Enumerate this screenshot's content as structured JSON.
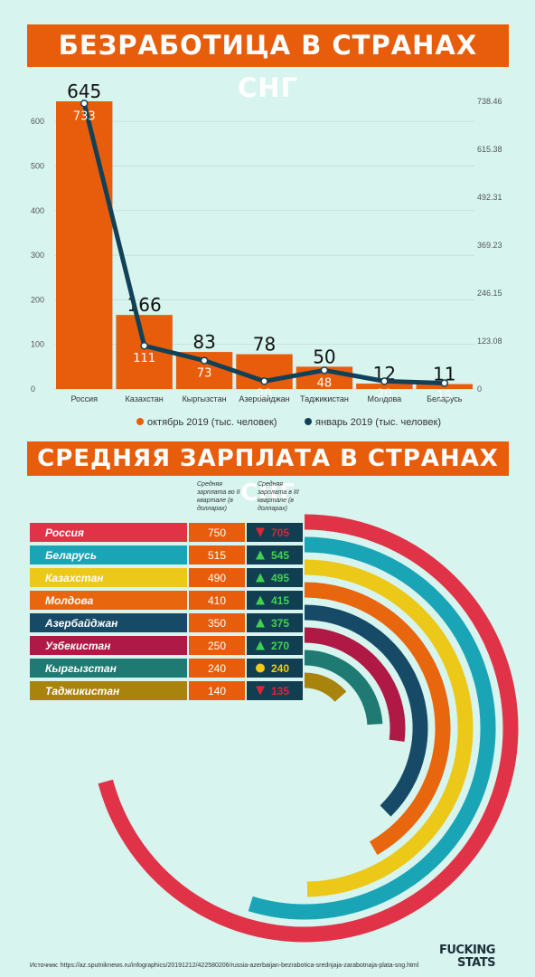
{
  "titles": {
    "unemployment": "БЕЗРАБОТИЦА В СТРАНАХ СНГ",
    "salary": "СРЕДНЯЯ ЗАРПЛАТА В СТРАНАХ СНГ"
  },
  "colors": {
    "orange": "#e85d0c",
    "navy": "#124157",
    "background": "#d7f4ee"
  },
  "chart_data": [
    {
      "type": "bar",
      "categories": [
        "Россия",
        "Казахстан",
        "Кыргызстан",
        "Азербайджан",
        "Таджикистан",
        "Молдова",
        "Беларусь"
      ],
      "series": [
        {
          "name": "октябрь 2019 (тыс. человек)",
          "type": "bar",
          "axis": "left",
          "color": "#e85d0c",
          "values": [
            645,
            166,
            83,
            78,
            50,
            12,
            11
          ],
          "labels": [
            "645",
            "166",
            "83",
            "78",
            "50",
            "12",
            "11"
          ]
        },
        {
          "name": "январь 2019 (тыс. человек)",
          "type": "line",
          "axis": "right",
          "color": "#124157",
          "values": [
            733,
            111,
            73,
            20,
            48,
            20,
            15
          ],
          "labels": [
            "733",
            "111",
            "73",
            "20",
            "48",
            "20",
            "15"
          ]
        }
      ],
      "y_left": {
        "ticks": [
          "0",
          "100",
          "200",
          "300",
          "400",
          "500",
          "600"
        ],
        "range": [
          0,
          645
        ]
      },
      "y_right": {
        "ticks": [
          "0",
          "123.08",
          "246.15",
          "369.23",
          "492.31",
          "615.38",
          "738.46"
        ],
        "range": [
          0,
          738.46
        ]
      },
      "grid": true,
      "legend_position": "bottom"
    },
    {
      "type": "table",
      "columns": [
        "",
        "Средняя зарплата во II квартале (в долларах)",
        "Средняя зарплата в III квартале (в долларах)"
      ],
      "rows": [
        {
          "country": "Россия",
          "q2": 750,
          "q3": 705,
          "trend": "down",
          "color": "#e03348"
        },
        {
          "country": "Беларусь",
          "q2": 515,
          "q3": 545,
          "trend": "up",
          "color": "#1aa5b6"
        },
        {
          "country": "Казахстан",
          "q2": 490,
          "q3": 495,
          "trend": "up",
          "color": "#ecc818"
        },
        {
          "country": "Молдова",
          "q2": 410,
          "q3": 415,
          "trend": "up",
          "color": "#e8660e"
        },
        {
          "country": "Азербайджан",
          "q2": 350,
          "q3": 375,
          "trend": "up",
          "color": "#164a66"
        },
        {
          "country": "Узбекистан",
          "q2": 250,
          "q3": 270,
          "trend": "up",
          "color": "#b01946"
        },
        {
          "country": "Кыргызстан",
          "q2": 240,
          "q3": 240,
          "trend": "same",
          "color": "#1e7a72"
        },
        {
          "country": "Таджикистан",
          "q2": 140,
          "q3": 135,
          "trend": "down",
          "color": "#a8840c"
        }
      ]
    }
  ],
  "source": "Источник: https://az.sputniknews.ru/infographics/20191212/422580206/russia-azerbaijan-bezrabotica-srednjaja-zarabotnaja-plata-sng.html",
  "logo": [
    "FUCKING",
    "STATS"
  ]
}
